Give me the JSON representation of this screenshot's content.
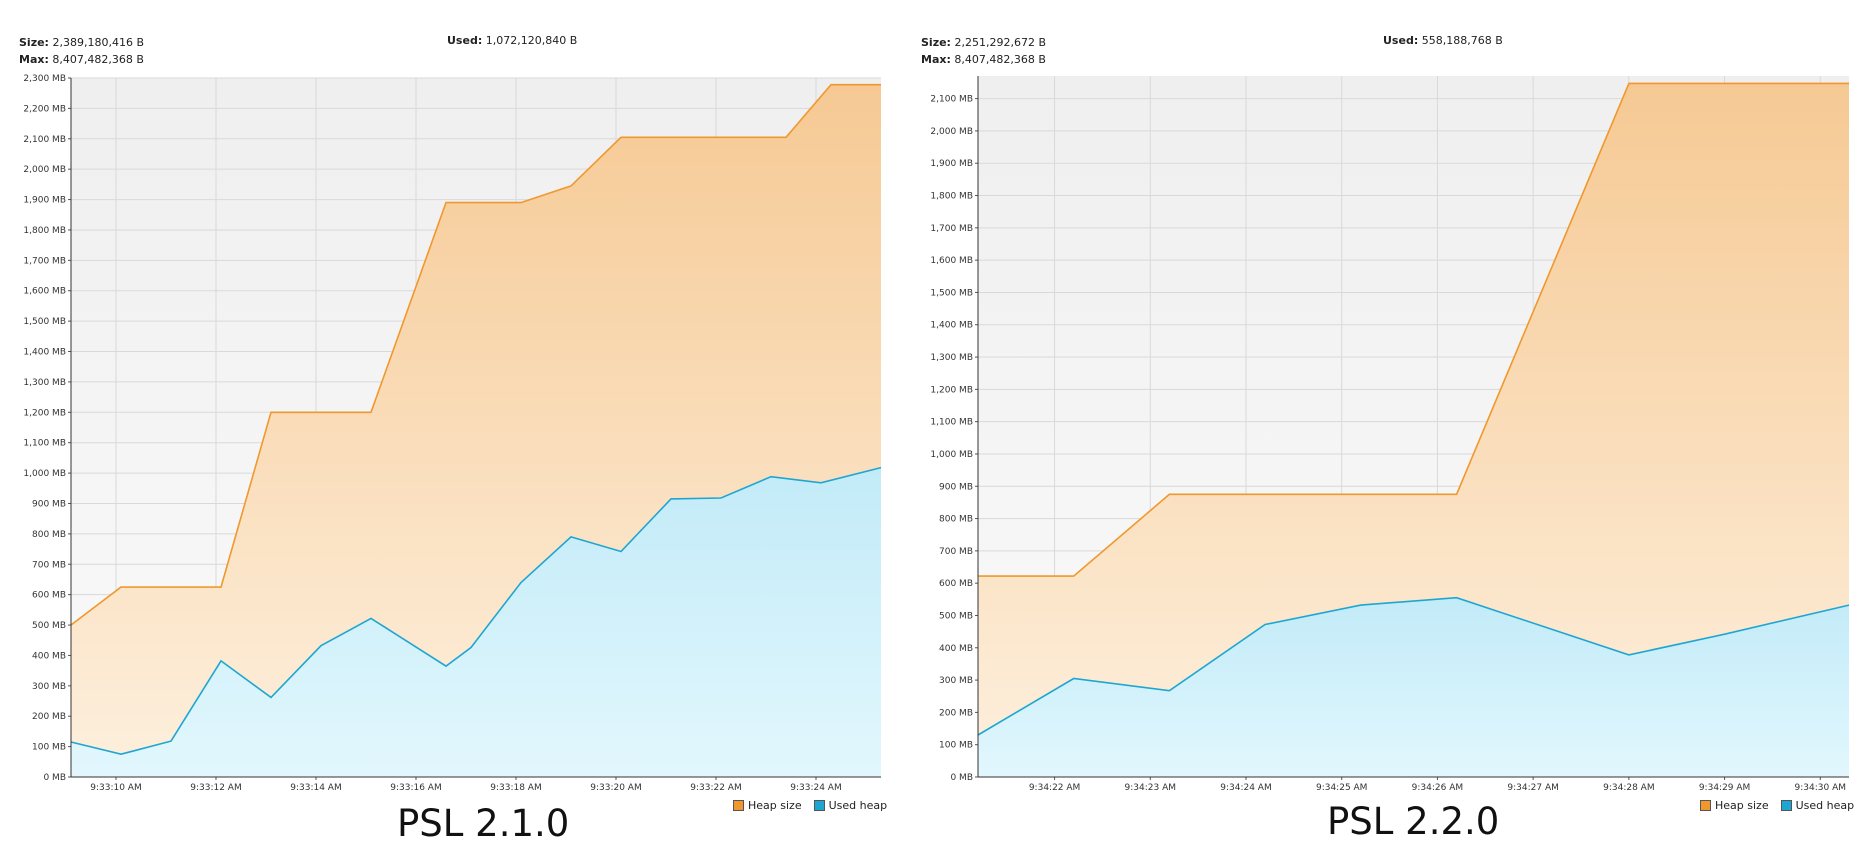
{
  "colors": {
    "heap_line": "#f0982e",
    "used_line": "#1ea6d2",
    "plot_bg": "#f1f1f1",
    "grid": "#d9d9d9"
  },
  "chart_data": [
    {
      "type": "area",
      "title": "PSL 2.1.0",
      "stats": {
        "size_label": "Size:",
        "size_value": "2,389,180,416 B",
        "max_label": "Max:",
        "max_value": "8,407,482,368 B",
        "used_label": "Used:",
        "used_value": "1,072,120,840 B"
      },
      "ylim": [
        0,
        2300
      ],
      "y_ticks": [
        0,
        100,
        200,
        300,
        400,
        500,
        600,
        700,
        800,
        900,
        1000,
        1100,
        1200,
        1300,
        1400,
        1500,
        1600,
        1700,
        1800,
        1900,
        2000,
        2100,
        2200,
        2300
      ],
      "y_tick_labels": [
        "0 MB",
        "100 MB",
        "200 MB",
        "300 MB",
        "400 MB",
        "500 MB",
        "600 MB",
        "700 MB",
        "800 MB",
        "900 MB",
        "1,000 MB",
        "1,100 MB",
        "1,200 MB",
        "1,300 MB",
        "1,400 MB",
        "1,500 MB",
        "1,600 MB",
        "1,700 MB",
        "1,800 MB",
        "1,900 MB",
        "2,000 MB",
        "2,100 MB",
        "2,200 MB",
        "2,300 MB"
      ],
      "xlim": [
        "9:33:09.1",
        "9:33:25.3"
      ],
      "x_ticks": [
        "9:33:10",
        "9:33:12",
        "9:33:14",
        "9:33:16",
        "9:33:18",
        "9:33:20",
        "9:33:22",
        "9:33:24"
      ],
      "x_tick_labels": [
        "9:33:10 AM",
        "9:33:12 AM",
        "9:33:14 AM",
        "9:33:16 AM",
        "9:33:18 AM",
        "9:33:20 AM",
        "9:33:22 AM",
        "9:33:24 AM"
      ],
      "legend": [
        "Heap size",
        "Used heap"
      ],
      "legend_position": "bottom-right",
      "series": [
        {
          "name": "Heap size",
          "x": [
            "9:33:09.1",
            "9:33:10.1",
            "9:33:12.1",
            "9:33:13.1",
            "9:33:15.1",
            "9:33:16.6",
            "9:33:18.1",
            "9:33:19.1",
            "9:33:20.1",
            "9:33:22.4",
            "9:33:23.4",
            "9:33:24.3",
            "9:33:25.3"
          ],
          "values": [
            500,
            625,
            625,
            1200,
            1200,
            1890,
            1890,
            1945,
            2105,
            2105,
            2105,
            2278,
            2278
          ]
        },
        {
          "name": "Used heap",
          "x": [
            "9:33:09.1",
            "9:33:10.1",
            "9:33:11.1",
            "9:33:12.1",
            "9:33:13.1",
            "9:33:14.1",
            "9:33:15.1",
            "9:33:16.6",
            "9:33:17.1",
            "9:33:18.1",
            "9:33:19.1",
            "9:33:20.1",
            "9:33:21.1",
            "9:33:22.1",
            "9:33:23.1",
            "9:33:24.1",
            "9:33:25.3"
          ],
          "values": [
            115,
            75,
            118,
            382,
            262,
            432,
            522,
            365,
            426,
            640,
            790,
            742,
            915,
            918,
            988,
            968,
            1018
          ]
        }
      ]
    },
    {
      "type": "area",
      "title": "PSL 2.2.0",
      "stats": {
        "size_label": "Size:",
        "size_value": "2,251,292,672 B",
        "max_label": "Max:",
        "max_value": "8,407,482,368 B",
        "used_label": "Used:",
        "used_value": "558,188,768 B"
      },
      "ylim": [
        0,
        2170
      ],
      "y_ticks": [
        0,
        100,
        200,
        300,
        400,
        500,
        600,
        700,
        800,
        900,
        1000,
        1100,
        1200,
        1300,
        1400,
        1500,
        1600,
        1700,
        1800,
        1900,
        2000,
        2100
      ],
      "y_tick_labels": [
        "0 MB",
        "100 MB",
        "200 MB",
        "300 MB",
        "400 MB",
        "500 MB",
        "600 MB",
        "700 MB",
        "800 MB",
        "900 MB",
        "1,000 MB",
        "1,100 MB",
        "1,200 MB",
        "1,300 MB",
        "1,400 MB",
        "1,500 MB",
        "1,600 MB",
        "1,700 MB",
        "1,800 MB",
        "1,900 MB",
        "2,000 MB",
        "2,100 MB"
      ],
      "xlim": [
        "9:34:21.2",
        "9:34:30.3"
      ],
      "x_ticks": [
        "9:34:22",
        "9:34:23",
        "9:34:24",
        "9:34:25",
        "9:34:26",
        "9:34:27",
        "9:34:28",
        "9:34:29",
        "9:34:30"
      ],
      "x_tick_labels": [
        "9:34:22 AM",
        "9:34:23 AM",
        "9:34:24 AM",
        "9:34:25 AM",
        "9:34:26 AM",
        "9:34:27 AM",
        "9:34:28 AM",
        "9:34:29 AM",
        "9:34:30 AM"
      ],
      "legend": [
        "Heap size",
        "Used heap"
      ],
      "legend_position": "bottom-right",
      "series": [
        {
          "name": "Heap size",
          "x": [
            "9:34:21.2",
            "9:34:22.2",
            "9:34:23.2",
            "9:34:26.2",
            "9:34:28.0",
            "9:34:30.3"
          ],
          "values": [
            622,
            622,
            875,
            875,
            2147,
            2147
          ]
        },
        {
          "name": "Used heap",
          "x": [
            "9:34:21.2",
            "9:34:22.2",
            "9:34:23.2",
            "9:34:24.2",
            "9:34:25.2",
            "9:34:26.2",
            "9:34:28.0",
            "9:34:29.0",
            "9:34:30.3"
          ],
          "values": [
            130,
            305,
            267,
            472,
            532,
            555,
            378,
            442,
            532
          ]
        }
      ]
    }
  ]
}
